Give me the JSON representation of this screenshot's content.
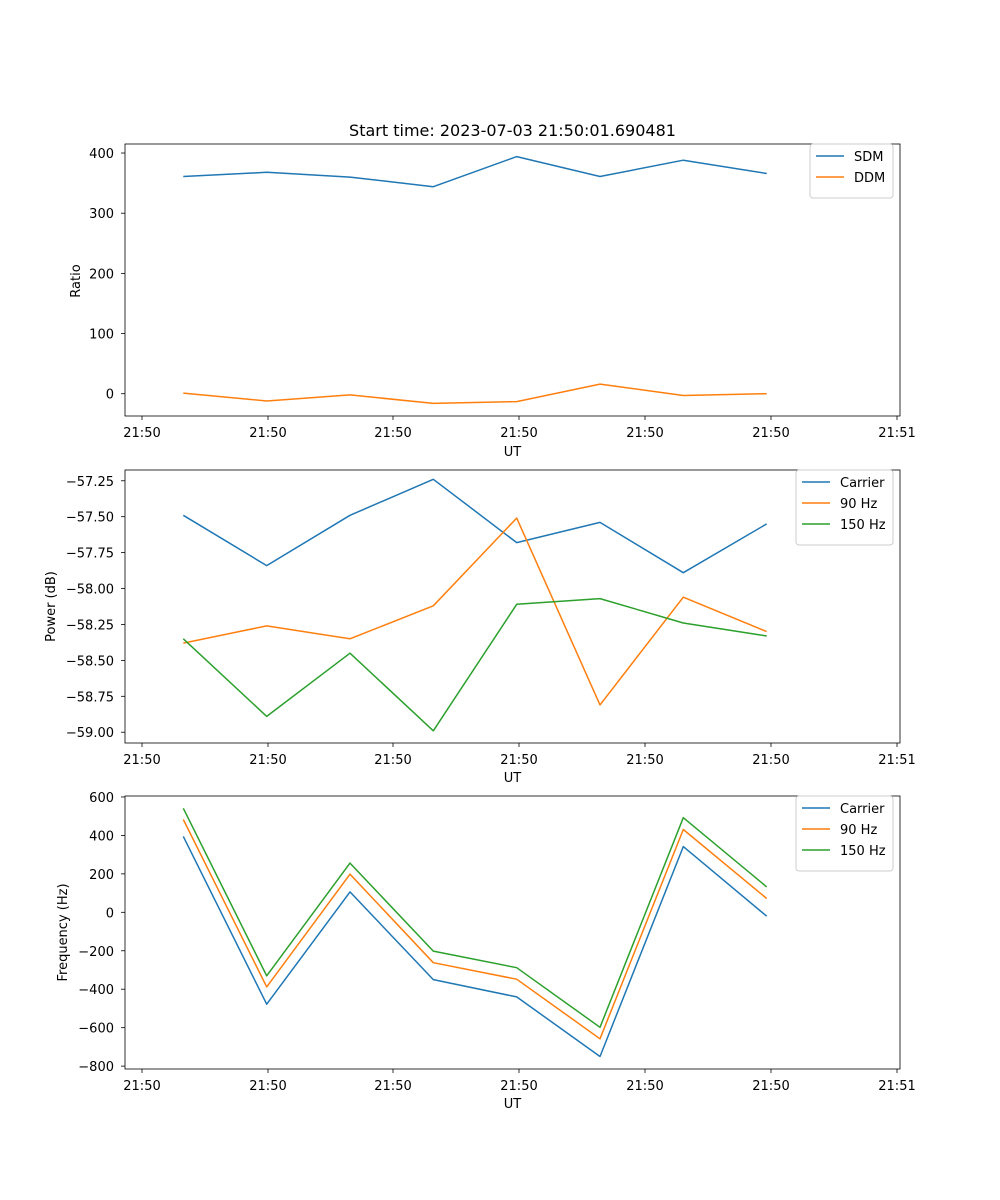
{
  "colors": {
    "blue": "#1f77b4",
    "orange": "#ff7f0e",
    "green": "#2ca02c"
  },
  "chart_data": [
    {
      "type": "line",
      "title": "Start time: 2023-07-03 21:50:01.690481",
      "xlabel": "UT",
      "ylabel": "Ratio",
      "x_tick_labels": [
        "21:50",
        "21:50",
        "21:50",
        "21:50",
        "21:50",
        "21:50",
        "21:51"
      ],
      "xlim": [
        -0.7,
        8.6
      ],
      "x": [
        0,
        1,
        2,
        3,
        4,
        5,
        6,
        7
      ],
      "ylim": [
        -37,
        415
      ],
      "yticks": [
        0,
        100,
        200,
        300,
        400
      ],
      "ytick_labels": [
        "0",
        "100",
        "200",
        "300",
        "400"
      ],
      "legend_loc": "upper right",
      "series": [
        {
          "name": "SDM",
          "color": "#1f77b4",
          "values": [
            361,
            368,
            360,
            344,
            394,
            361,
            388,
            366
          ]
        },
        {
          "name": "DDM",
          "color": "#ff7f0e",
          "values": [
            1,
            -12,
            -2,
            -16,
            -13,
            16,
            -3,
            0
          ]
        }
      ]
    },
    {
      "type": "line",
      "title": "",
      "xlabel": "UT",
      "ylabel": "Power (dB)",
      "x_tick_labels": [
        "21:50",
        "21:50",
        "21:50",
        "21:50",
        "21:50",
        "21:50",
        "21:51"
      ],
      "xlim": [
        -0.7,
        8.6
      ],
      "x": [
        0,
        1,
        2,
        3,
        4,
        5,
        6,
        7
      ],
      "ylim": [
        -59.075,
        -57.175
      ],
      "yticks": [
        -59.0,
        -58.75,
        -58.5,
        -58.25,
        -58.0,
        -57.75,
        -57.5,
        -57.25
      ],
      "ytick_labels": [
        "−59.00",
        "−58.75",
        "−58.50",
        "−58.25",
        "−58.00",
        "−57.75",
        "−57.50",
        "−57.25"
      ],
      "legend_loc": "upper right",
      "series": [
        {
          "name": "Carrier",
          "color": "#1f77b4",
          "values": [
            -57.49,
            -57.84,
            -57.49,
            -57.24,
            -57.68,
            -57.54,
            -57.89,
            -57.55
          ]
        },
        {
          "name": "90 Hz",
          "color": "#ff7f0e",
          "values": [
            -58.38,
            -58.26,
            -58.35,
            -58.12,
            -57.51,
            -58.81,
            -58.06,
            -58.3
          ]
        },
        {
          "name": "150 Hz",
          "color": "#2ca02c",
          "values": [
            -58.35,
            -58.89,
            -58.45,
            -58.99,
            -58.11,
            -58.07,
            -58.24,
            -58.33
          ]
        }
      ]
    },
    {
      "type": "line",
      "title": "",
      "xlabel": "UT",
      "ylabel": "Frequency (Hz)",
      "x_tick_labels": [
        "21:50",
        "21:50",
        "21:50",
        "21:50",
        "21:50",
        "21:50",
        "21:51"
      ],
      "xlim": [
        -0.7,
        8.6
      ],
      "x": [
        0,
        1,
        2,
        3,
        4,
        5,
        6,
        7
      ],
      "ylim": [
        -815,
        605
      ],
      "yticks": [
        -800,
        -600,
        -400,
        -200,
        0,
        200,
        400,
        600
      ],
      "ytick_labels": [
        "−800",
        "−600",
        "−400",
        "−200",
        "0",
        "200",
        "400",
        "600"
      ],
      "legend_loc": "upper right",
      "series": [
        {
          "name": "Carrier",
          "color": "#1f77b4",
          "values": [
            395,
            -478,
            106,
            -350,
            -440,
            -750,
            342,
            -20
          ]
        },
        {
          "name": "90 Hz",
          "color": "#ff7f0e",
          "values": [
            483,
            -388,
            198,
            -262,
            -348,
            -658,
            431,
            72
          ]
        },
        {
          "name": "150 Hz",
          "color": "#2ca02c",
          "values": [
            541,
            -330,
            256,
            -202,
            -288,
            -598,
            492,
            132
          ]
        }
      ]
    }
  ]
}
